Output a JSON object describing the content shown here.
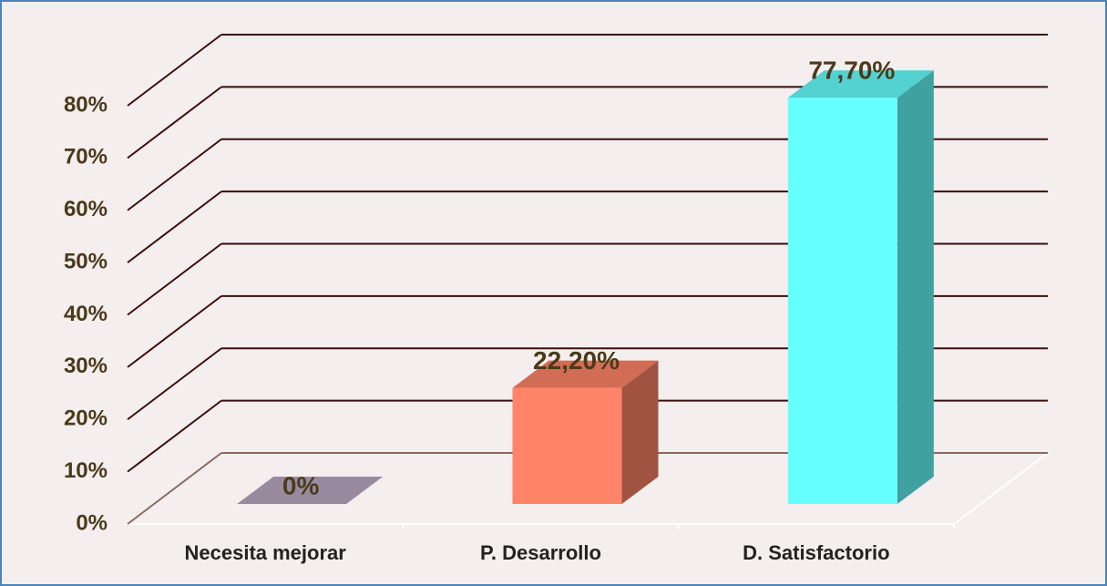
{
  "chart_data": {
    "type": "bar3d",
    "categories": [
      "Necesita mejorar",
      "P. Desarrollo",
      "D. Satisfactorio"
    ],
    "values": [
      0,
      22.2,
      77.7
    ],
    "value_labels": [
      "0%",
      "22,20%",
      "77,70%"
    ],
    "colors": [
      "#bba9c2",
      "#ff8468",
      "#66ffff"
    ],
    "ylim": [
      0,
      80
    ],
    "yticks": [
      {
        "value": 0,
        "label": "0%"
      },
      {
        "value": 10,
        "label": "10%"
      },
      {
        "value": 20,
        "label": "20%"
      },
      {
        "value": 30,
        "label": "30%"
      },
      {
        "value": 40,
        "label": "40%"
      },
      {
        "value": 50,
        "label": "50%"
      },
      {
        "value": 60,
        "label": "60%"
      },
      {
        "value": 70,
        "label": "70%"
      },
      {
        "value": 80,
        "label": "80%"
      }
    ],
    "grid": true
  }
}
